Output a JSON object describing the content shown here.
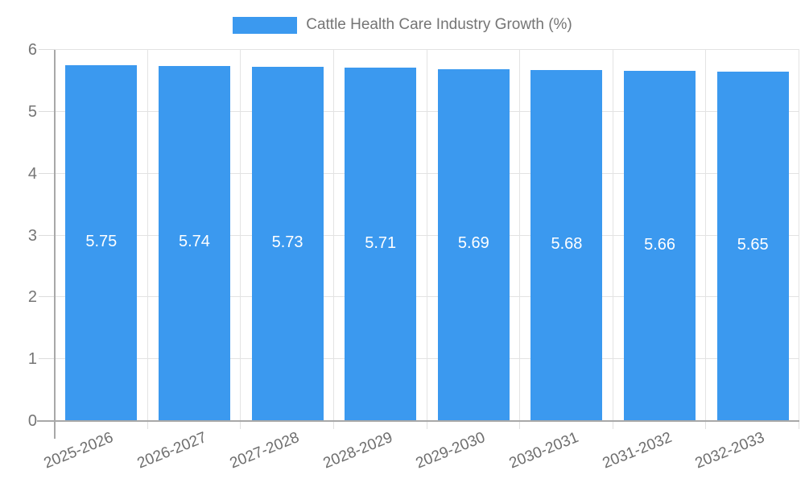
{
  "chart_data": {
    "type": "bar",
    "title": "Cattle Health Care Industry Growth (%)",
    "legend_position": "top",
    "legend": [
      {
        "label": "Cattle Health Care Industry Growth (%)",
        "color": "#3b99ef"
      }
    ],
    "categories": [
      "2025-2026",
      "2026-2027",
      "2027-2028",
      "2028-2029",
      "2029-2030",
      "2030-2031",
      "2031-2032",
      "2032-2033"
    ],
    "values": [
      5.75,
      5.74,
      5.73,
      5.71,
      5.69,
      5.68,
      5.66,
      5.65
    ],
    "value_labels": [
      "5.75",
      "5.74",
      "5.73",
      "5.71",
      "5.69",
      "5.68",
      "5.66",
      "5.65"
    ],
    "xlabel": "",
    "ylabel": "",
    "y_ticks": [
      0,
      1,
      2,
      3,
      4,
      5,
      6
    ],
    "ylim": [
      0,
      6
    ],
    "grid": true,
    "colors": {
      "bar": "#3b99ef",
      "grid": "#e3e3e3",
      "axis": "#a8a8a8",
      "tick_text": "#757575",
      "value_text": "#ffffff",
      "title_text": "#757575"
    }
  }
}
